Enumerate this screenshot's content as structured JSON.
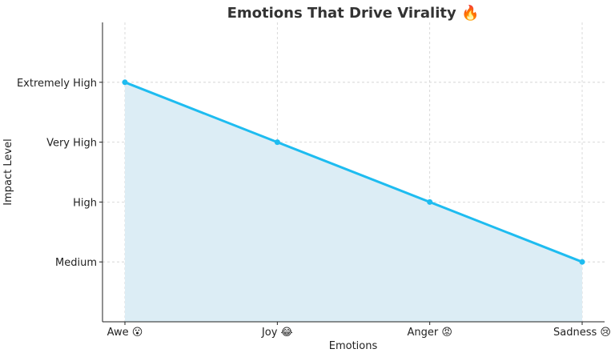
{
  "chart_data": {
    "type": "area",
    "title": "Emotions That Drive Virality 🔥",
    "xlabel": "Emotions",
    "ylabel": "Impact Level",
    "categories": [
      "Awe 😮",
      "Joy 😂",
      "Anger 😡",
      "Sadness 😢"
    ],
    "y_levels": [
      "Medium",
      "High",
      "Very High",
      "Extremely High"
    ],
    "values": [
      4,
      3,
      2,
      1
    ],
    "ylim": [
      0,
      5
    ],
    "grid": true,
    "line_color": "#1ebcf0",
    "fill_color": "#dcedf5"
  }
}
